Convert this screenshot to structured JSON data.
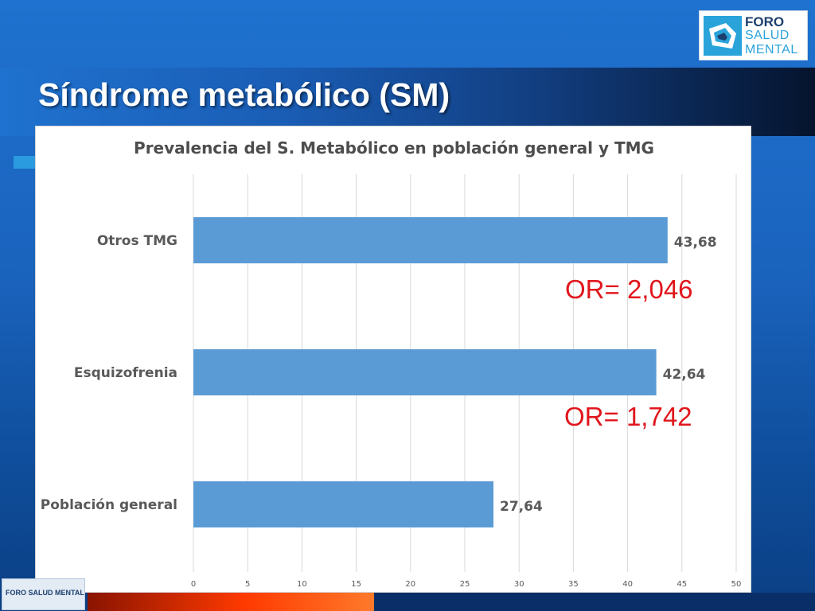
{
  "slide": {
    "title": "Síndrome metabólico (SM)"
  },
  "logo": {
    "line1": "FORO",
    "line2": "SALUD",
    "line3": "MENTAL"
  },
  "footer": {
    "logo_text": "FORO SALUD MENTAL"
  },
  "colors": {
    "bar": "#5b9bd5",
    "annotation": "#e0161c",
    "title_band": "#05142e",
    "background": "#1a63bd"
  },
  "annotations": [
    {
      "label": "OR= 2,046"
    },
    {
      "label": "OR= 1,742"
    }
  ],
  "chart_data": {
    "type": "bar",
    "orientation": "horizontal",
    "title": "Prevalencia del S. Metabólico en población general y TMG",
    "xlabel": "",
    "ylabel": "",
    "categories": [
      "Otros TMG",
      "Esquizofrenia",
      "Población general"
    ],
    "values": [
      43.68,
      42.64,
      27.64
    ],
    "value_labels": [
      "43,68",
      "42,64",
      "27,64"
    ],
    "xlim": [
      0,
      50
    ],
    "xticks": [
      0,
      5,
      10,
      15,
      20,
      25,
      30,
      35,
      40,
      45,
      50
    ],
    "grid": "vertical",
    "legend": "none"
  }
}
